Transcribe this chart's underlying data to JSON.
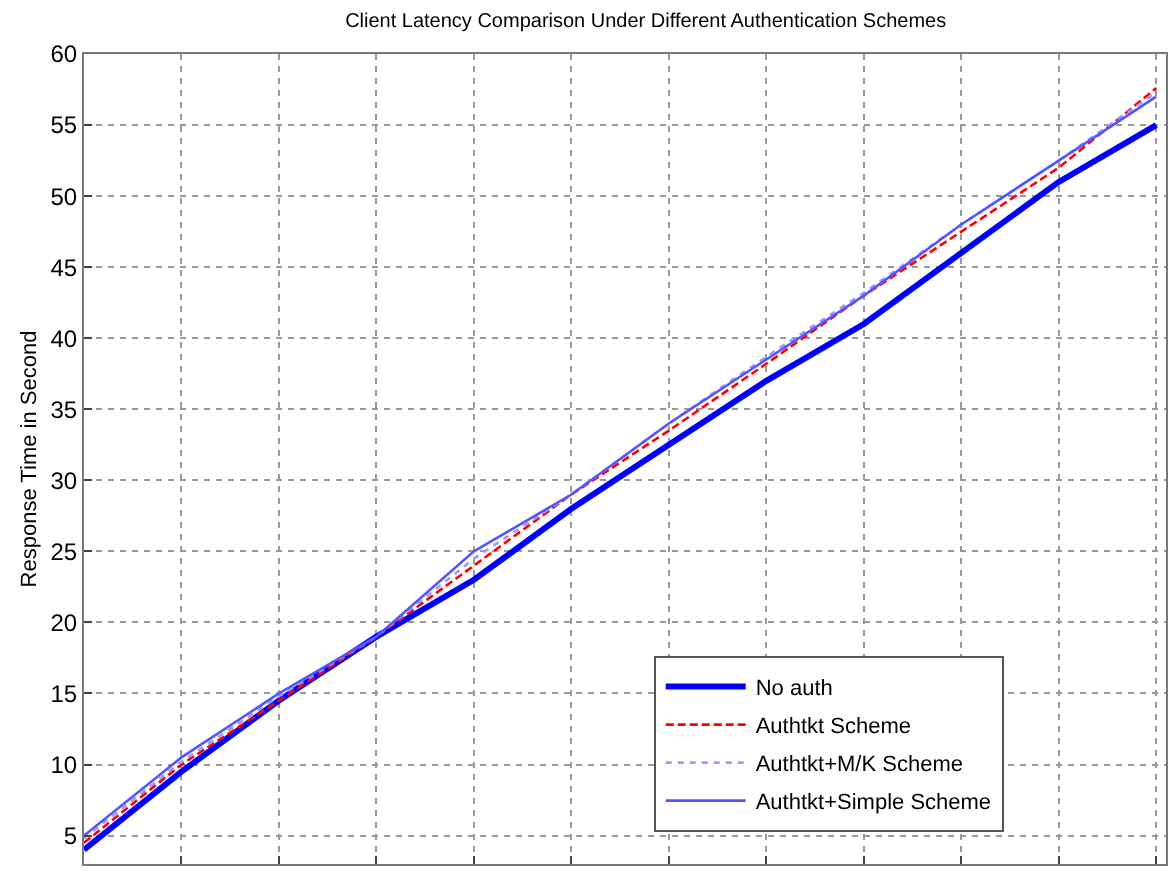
{
  "chart_data": {
    "type": "line",
    "title": "Client Latency Comparison Under Different Authentication Schemes",
    "ylabel": "Response Time in Second",
    "categories": [
      null,
      null,
      null,
      null,
      null,
      null,
      null,
      null,
      null,
      null,
      null,
      null
    ],
    "series": [
      {
        "name": "No auth",
        "color": "#0000ff",
        "line_style": "solid",
        "values": [
          4,
          9.5,
          14.5,
          19,
          23,
          28,
          32.5,
          37,
          41,
          46,
          51,
          55
        ]
      },
      {
        "name": "Authtkt Scheme",
        "color": "#ff0000",
        "line_style": "dashed",
        "values": [
          4.5,
          10,
          14.5,
          19,
          24,
          29,
          33.5,
          38.2,
          43,
          47.5,
          52,
          57.6
        ]
      },
      {
        "name": "Authtkt+M/K Scheme",
        "color": "#9999ff",
        "line_style": "dotted",
        "values": [
          4.8,
          10.2,
          14.8,
          19,
          24.5,
          29,
          34,
          38.7,
          43.2,
          48,
          52.5,
          57.3
        ]
      },
      {
        "name": "Authtkt+Simple Scheme",
        "color": "#5555ff",
        "line_style": "solid",
        "values": [
          5,
          10.5,
          15,
          19,
          25,
          29,
          34,
          38.5,
          43,
          48,
          52.5,
          57
        ]
      }
    ],
    "ylim": [
      3,
      60
    ],
    "yticks": [
      5,
      10,
      15,
      20,
      25,
      30,
      35,
      40,
      45,
      50,
      55,
      60
    ],
    "tick_labels": "y",
    "grid": true,
    "legend": "bottom right",
    "marker": "none"
  }
}
